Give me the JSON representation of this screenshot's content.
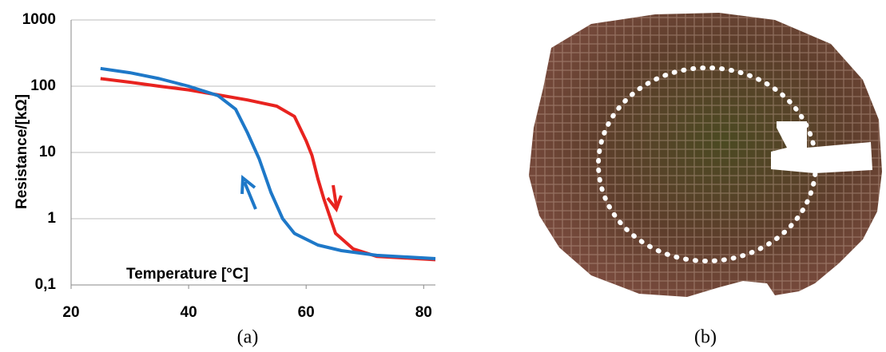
{
  "chart_data": {
    "type": "line",
    "y_label": "Resistance/[kΩ]",
    "x_label": "Temperature [°C]",
    "panel_label": "(a)",
    "xlim": [
      20,
      82
    ],
    "xticks": [
      20,
      40,
      60,
      80
    ],
    "ylim": [
      0.1,
      1000
    ],
    "yscale": "log",
    "yticks": [
      {
        "value": 0.1,
        "label": "0,1"
      },
      1,
      10,
      100,
      1000
    ],
    "grid": true,
    "series": [
      {
        "color": "#e8231f",
        "x": [
          25,
          30,
          35,
          40,
          45,
          50,
          55,
          58,
          60,
          61,
          62,
          63,
          65,
          68,
          72,
          82
        ],
        "values": [
          130,
          115,
          100,
          88,
          74,
          62,
          50,
          35,
          15,
          9,
          4,
          2,
          0.6,
          0.35,
          0.27,
          0.24
        ]
      },
      {
        "color": "#1e78c8",
        "x": [
          25,
          30,
          35,
          40,
          45,
          48,
          50,
          52,
          54,
          56,
          58,
          62,
          66,
          72,
          82
        ],
        "values": [
          185,
          160,
          130,
          100,
          72,
          45,
          20,
          8,
          2.5,
          1,
          0.6,
          0.4,
          0.33,
          0.28,
          0.25
        ]
      }
    ]
  },
  "photo": {
    "panel_label": "(b)"
  }
}
